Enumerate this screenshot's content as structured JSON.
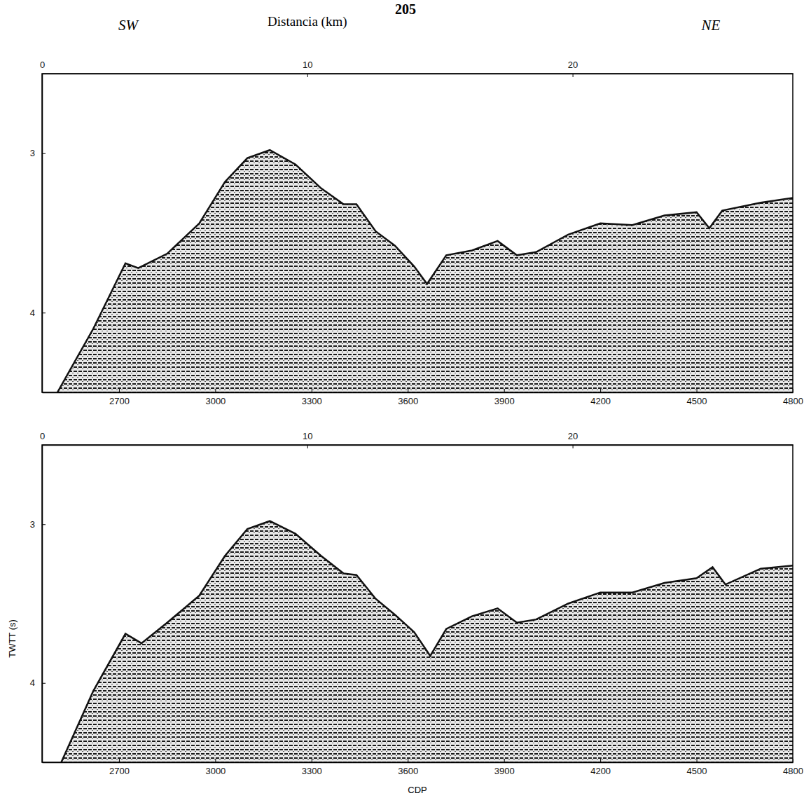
{
  "page_number": "205",
  "chart_data": [
    {
      "type": "area",
      "x2_label": "Distancia (km)",
      "annotations": [
        "SW",
        "NE"
      ],
      "xlim": [
        2460,
        4800
      ],
      "xticks": [
        2700,
        3000,
        3300,
        3600,
        3900,
        4200,
        4500,
        4800
      ],
      "x2lim": [
        0,
        28.3
      ],
      "x2ticks": [
        0,
        10,
        20
      ],
      "ylim": [
        2.5,
        4.5
      ],
      "yticks": [
        3,
        4
      ],
      "x": [
        2508,
        2620,
        2720,
        2760,
        2850,
        2950,
        3030,
        3100,
        3170,
        3250,
        3330,
        3400,
        3440,
        3500,
        3560,
        3620,
        3660,
        3720,
        3800,
        3880,
        3940,
        4000,
        4100,
        4200,
        4300,
        4400,
        4500,
        4540,
        4580,
        4700,
        4800
      ],
      "series": [
        {
          "color": "#111111",
          "values": [
            4.5,
            4.1,
            3.69,
            3.72,
            3.63,
            3.44,
            3.18,
            3.03,
            2.98,
            3.07,
            3.22,
            3.32,
            3.32,
            3.49,
            3.58,
            3.71,
            3.82,
            3.64,
            3.61,
            3.55,
            3.64,
            3.62,
            3.51,
            3.44,
            3.45,
            3.39,
            3.37,
            3.47,
            3.36,
            3.31,
            3.28
          ]
        }
      ]
    },
    {
      "type": "area",
      "x_label": "CDP",
      "y_label": "TWTT (s)",
      "xlim": [
        2460,
        4800
      ],
      "xticks": [
        2700,
        3000,
        3300,
        3600,
        3900,
        4200,
        4500,
        4800
      ],
      "x2lim": [
        0,
        28.3
      ],
      "x2ticks": [
        0,
        10,
        20
      ],
      "ylim": [
        2.5,
        4.5
      ],
      "yticks": [
        3,
        4
      ],
      "x": [
        2520,
        2620,
        2720,
        2770,
        2850,
        2950,
        3030,
        3100,
        3170,
        3250,
        3330,
        3400,
        3440,
        3500,
        3560,
        3620,
        3670,
        3720,
        3800,
        3880,
        3940,
        4000,
        4100,
        4200,
        4300,
        4400,
        4500,
        4550,
        4590,
        4700,
        4800
      ],
      "series": [
        {
          "color": "#111111",
          "values": [
            4.5,
            4.05,
            3.69,
            3.75,
            3.62,
            3.45,
            3.2,
            3.03,
            2.98,
            3.06,
            3.2,
            3.31,
            3.32,
            3.47,
            3.57,
            3.68,
            3.83,
            3.66,
            3.58,
            3.53,
            3.62,
            3.6,
            3.5,
            3.43,
            3.43,
            3.37,
            3.34,
            3.27,
            3.38,
            3.28,
            3.26
          ]
        }
      ]
    }
  ]
}
